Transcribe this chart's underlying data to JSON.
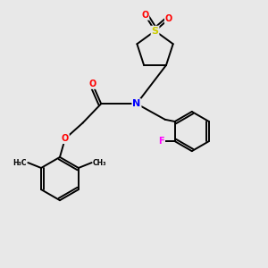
{
  "bg_color": "#e8e8e8",
  "atom_colors": {
    "O": "#ff0000",
    "N": "#0000ff",
    "S": "#cccc00",
    "F": "#ff00ff",
    "C": "#000000"
  },
  "bond_color": "#000000",
  "bond_width": 1.4,
  "figsize": [
    3.0,
    3.0
  ],
  "dpi": 100,
  "xlim": [
    0,
    10
  ],
  "ylim": [
    0,
    10
  ]
}
